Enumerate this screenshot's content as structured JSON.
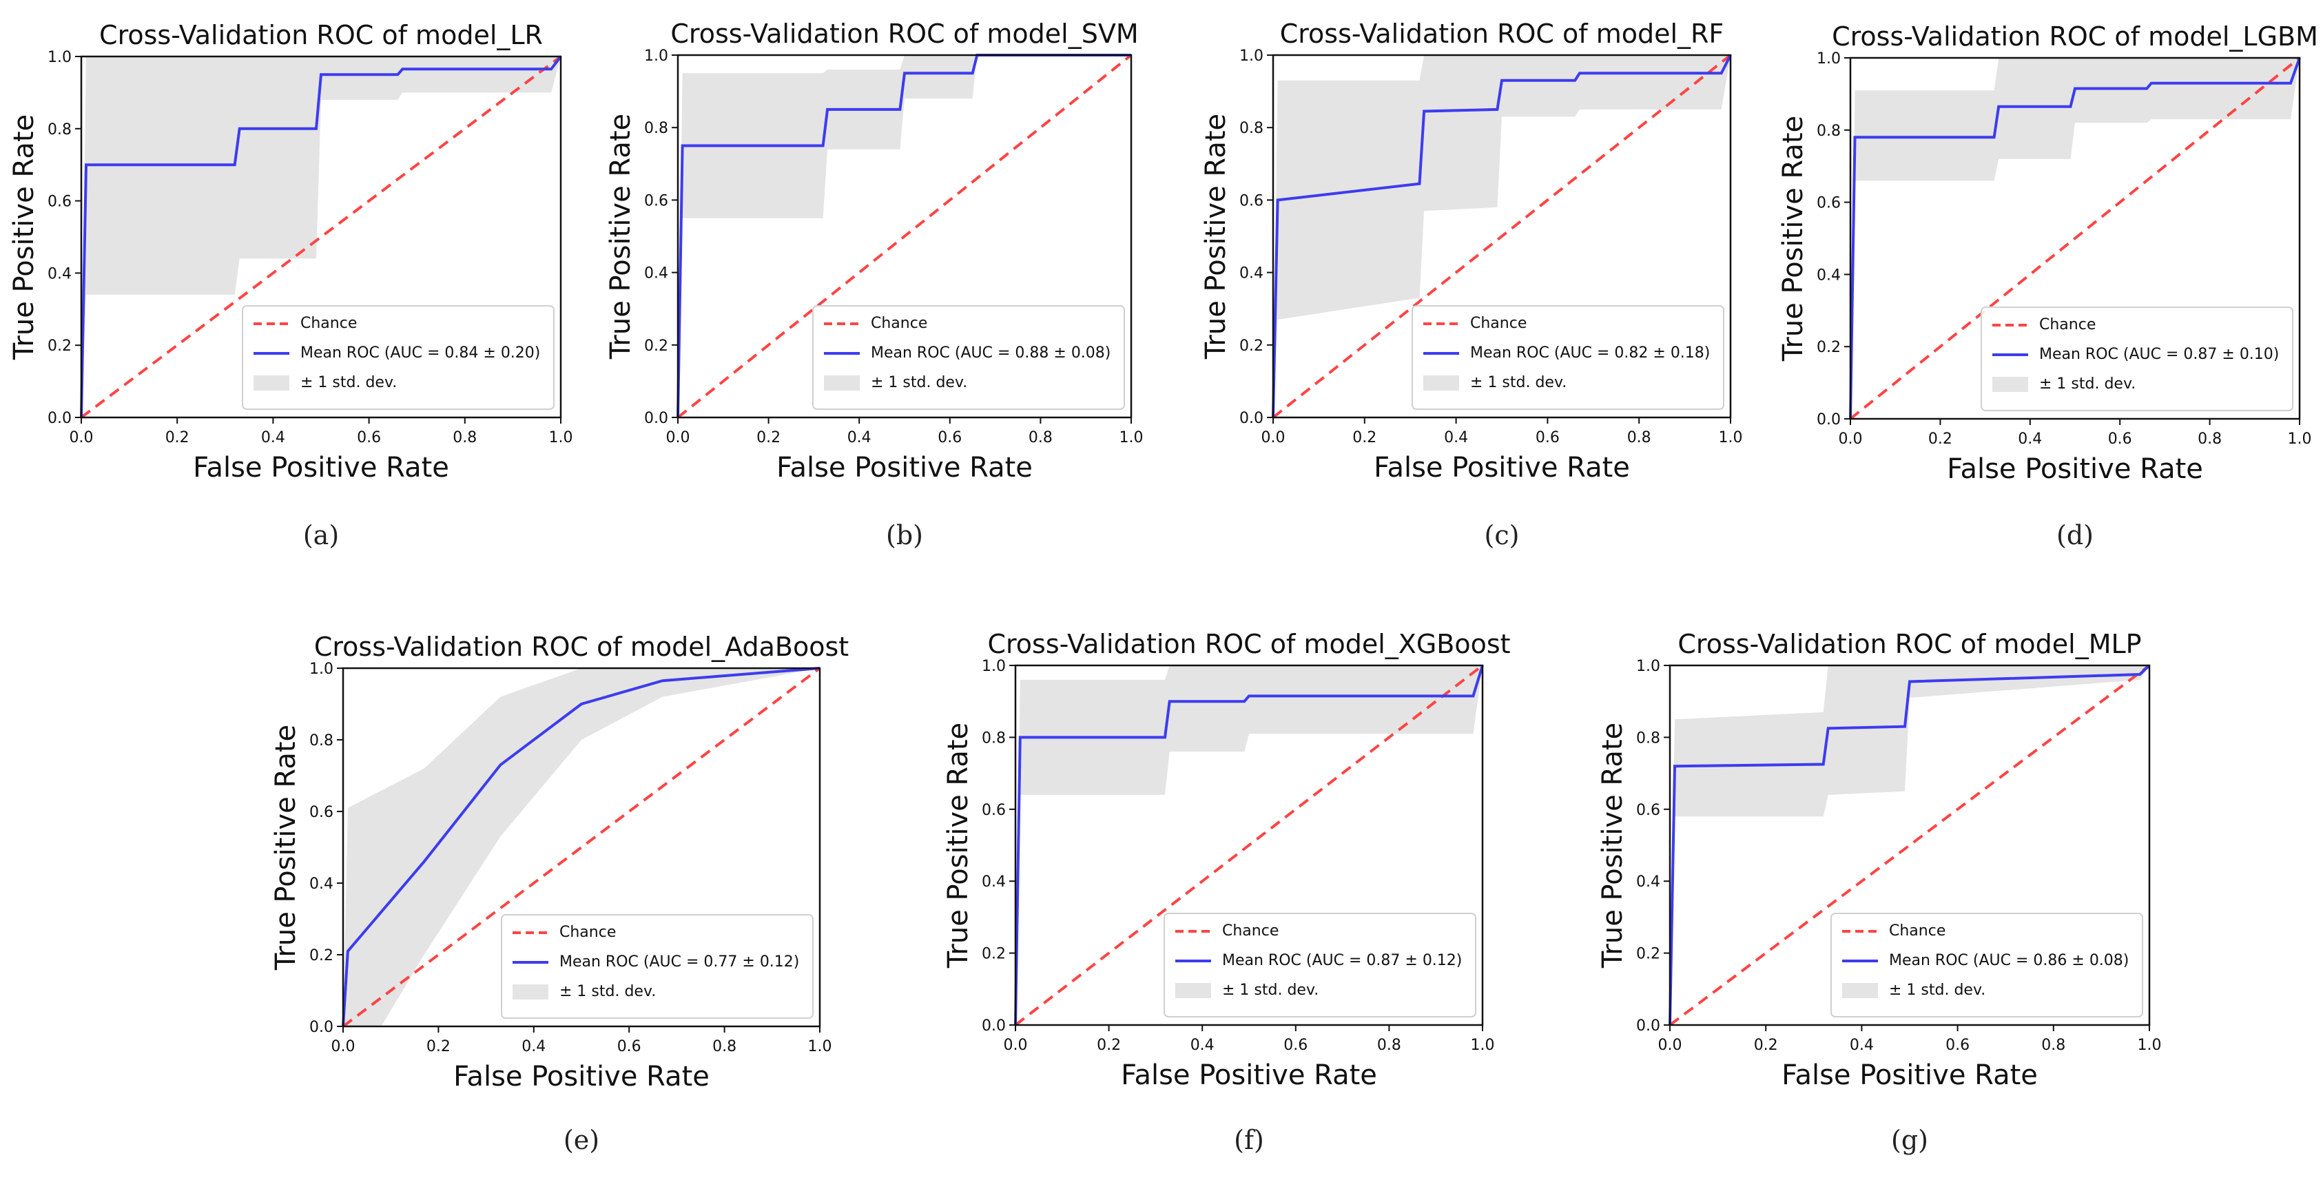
{
  "chart_data": [
    {
      "type": "line",
      "panel": "(a)",
      "title": "Cross-Validation ROC of model_LR",
      "xlabel": "False Positive Rate",
      "ylabel": "True Positive Rate",
      "xlim": [
        0,
        1
      ],
      "ylim": [
        0,
        1
      ],
      "xticks": [
        "0.0",
        "0.2",
        "0.4",
        "0.6",
        "0.8",
        "1.0"
      ],
      "yticks": [
        "0.0",
        "0.2",
        "0.4",
        "0.6",
        "0.8",
        "1.0"
      ],
      "legend": [
        "Chance",
        "Mean ROC (AUC = 0.84 ± 0.20)",
        "± 1 std. dev."
      ],
      "legend_position": "lower-right",
      "grid": false,
      "colors": {
        "chance": "#ff4444",
        "mean": "#3c3cf0",
        "band": "#e4e4e4"
      },
      "chance": {
        "x": [
          0,
          1
        ],
        "y": [
          0,
          1
        ]
      },
      "mean_roc": {
        "x": [
          0,
          0.01,
          0.32,
          0.33,
          0.49,
          0.5,
          0.66,
          0.67,
          0.98,
          1.0
        ],
        "y": [
          0,
          0.7,
          0.7,
          0.8,
          0.8,
          0.95,
          0.95,
          0.965,
          0.965,
          1.0
        ]
      },
      "band_upper": {
        "x": [
          0,
          0.01,
          0.49,
          0.5,
          1.0
        ],
        "y": [
          0,
          1.0,
          1.0,
          1.0,
          1.0
        ]
      },
      "band_lower": {
        "x": [
          0,
          0.01,
          0.32,
          0.33,
          0.49,
          0.5,
          0.66,
          0.67,
          0.98,
          1.0
        ],
        "y": [
          0,
          0.34,
          0.34,
          0.44,
          0.44,
          0.88,
          0.88,
          0.9,
          0.9,
          1.0
        ]
      }
    },
    {
      "type": "line",
      "panel": "(b)",
      "title": "Cross-Validation ROC of model_SVM",
      "xlabel": "False Positive Rate",
      "ylabel": "True Positive Rate",
      "xlim": [
        0,
        1
      ],
      "ylim": [
        0,
        1
      ],
      "xticks": [
        "0.0",
        "0.2",
        "0.4",
        "0.6",
        "0.8",
        "1.0"
      ],
      "yticks": [
        "0.0",
        "0.2",
        "0.4",
        "0.6",
        "0.8",
        "1.0"
      ],
      "legend": [
        "Chance",
        "Mean ROC (AUC = 0.88 ± 0.08)",
        "± 1 std. dev."
      ],
      "legend_position": "lower-right",
      "grid": false,
      "colors": {
        "chance": "#ff4444",
        "mean": "#3c3cf0",
        "band": "#e4e4e4"
      },
      "chance": {
        "x": [
          0,
          1
        ],
        "y": [
          0,
          1
        ]
      },
      "mean_roc": {
        "x": [
          0,
          0.01,
          0.32,
          0.33,
          0.49,
          0.5,
          0.65,
          0.66,
          1.0
        ],
        "y": [
          0,
          0.75,
          0.75,
          0.85,
          0.85,
          0.95,
          0.95,
          1.0,
          1.0
        ]
      },
      "band_upper": {
        "x": [
          0,
          0.01,
          0.32,
          0.33,
          0.49,
          0.5,
          1.0
        ],
        "y": [
          0,
          0.95,
          0.95,
          0.96,
          0.96,
          1.0,
          1.0
        ]
      },
      "band_lower": {
        "x": [
          0,
          0.01,
          0.32,
          0.33,
          0.49,
          0.5,
          0.65,
          0.66,
          1.0
        ],
        "y": [
          0,
          0.55,
          0.55,
          0.74,
          0.74,
          0.88,
          0.88,
          1.0,
          1.0
        ]
      }
    },
    {
      "type": "line",
      "panel": "(c)",
      "title": "Cross-Validation ROC of model_RF",
      "xlabel": "False Positive Rate",
      "ylabel": "True Positive Rate",
      "xlim": [
        0,
        1
      ],
      "ylim": [
        0,
        1
      ],
      "xticks": [
        "0.0",
        "0.2",
        "0.4",
        "0.6",
        "0.8",
        "1.0"
      ],
      "yticks": [
        "0.0",
        "0.2",
        "0.4",
        "0.6",
        "0.8",
        "1.0"
      ],
      "legend": [
        "Chance",
        "Mean ROC (AUC = 0.82 ± 0.18)",
        "± 1 std. dev."
      ],
      "legend_position": "lower-right",
      "grid": false,
      "colors": {
        "chance": "#ff4444",
        "mean": "#3c3cf0",
        "band": "#e4e4e4"
      },
      "chance": {
        "x": [
          0,
          1
        ],
        "y": [
          0,
          1
        ]
      },
      "mean_roc": {
        "x": [
          0,
          0.01,
          0.32,
          0.33,
          0.49,
          0.5,
          0.66,
          0.67,
          0.98,
          1.0
        ],
        "y": [
          0,
          0.6,
          0.645,
          0.845,
          0.85,
          0.93,
          0.93,
          0.95,
          0.95,
          1.0
        ]
      },
      "band_upper": {
        "x": [
          0,
          0.01,
          0.32,
          0.33,
          1.0
        ],
        "y": [
          0,
          0.93,
          0.93,
          1.0,
          1.0
        ]
      },
      "band_lower": {
        "x": [
          0,
          0.01,
          0.32,
          0.33,
          0.49,
          0.5,
          0.66,
          0.67,
          0.98,
          1.0
        ],
        "y": [
          0,
          0.27,
          0.33,
          0.57,
          0.58,
          0.83,
          0.83,
          0.85,
          0.85,
          1.0
        ]
      }
    },
    {
      "type": "line",
      "panel": "(d)",
      "title": "Cross-Validation ROC of model_LGBM",
      "xlabel": "False Positive Rate",
      "ylabel": "True Positive Rate",
      "xlim": [
        0,
        1
      ],
      "ylim": [
        0,
        1
      ],
      "xticks": [
        "0.0",
        "0.2",
        "0.4",
        "0.6",
        "0.8",
        "1.0"
      ],
      "yticks": [
        "0.0",
        "0.2",
        "0.4",
        "0.6",
        "0.8",
        "1.0"
      ],
      "legend": [
        "Chance",
        "Mean ROC (AUC = 0.87 ± 0.10)",
        "± 1 std. dev."
      ],
      "legend_position": "lower-right",
      "grid": false,
      "colors": {
        "chance": "#ff4444",
        "mean": "#3c3cf0",
        "band": "#e4e4e4"
      },
      "chance": {
        "x": [
          0,
          1
        ],
        "y": [
          0,
          1
        ]
      },
      "mean_roc": {
        "x": [
          0,
          0.01,
          0.32,
          0.33,
          0.49,
          0.5,
          0.66,
          0.67,
          0.98,
          1.0
        ],
        "y": [
          0,
          0.78,
          0.78,
          0.865,
          0.865,
          0.915,
          0.915,
          0.93,
          0.93,
          1.0
        ]
      },
      "band_upper": {
        "x": [
          0,
          0.01,
          0.32,
          0.33,
          1.0
        ],
        "y": [
          0,
          0.91,
          0.91,
          1.0,
          1.0
        ]
      },
      "band_lower": {
        "x": [
          0,
          0.01,
          0.32,
          0.33,
          0.49,
          0.5,
          0.66,
          0.67,
          0.98,
          1.0
        ],
        "y": [
          0,
          0.66,
          0.66,
          0.72,
          0.72,
          0.82,
          0.82,
          0.83,
          0.83,
          1.0
        ]
      }
    },
    {
      "type": "line",
      "panel": "(e)",
      "title": "Cross-Validation ROC of model_AdaBoost",
      "xlabel": "False Positive Rate",
      "ylabel": "True Positive Rate",
      "xlim": [
        0,
        1
      ],
      "ylim": [
        0,
        1
      ],
      "xticks": [
        "0.0",
        "0.2",
        "0.4",
        "0.6",
        "0.8",
        "1.0"
      ],
      "yticks": [
        "0.0",
        "0.2",
        "0.4",
        "0.6",
        "0.8",
        "1.0"
      ],
      "legend": [
        "Chance",
        "Mean ROC (AUC = 0.77 ± 0.12)",
        "± 1 std. dev."
      ],
      "legend_position": "lower-right",
      "grid": false,
      "colors": {
        "chance": "#ff4444",
        "mean": "#3c3cf0",
        "band": "#e4e4e4"
      },
      "chance": {
        "x": [
          0,
          1
        ],
        "y": [
          0,
          1
        ]
      },
      "mean_roc": {
        "x": [
          0,
          0.01,
          0.17,
          0.33,
          0.5,
          0.67,
          1.0
        ],
        "y": [
          0,
          0.21,
          0.46,
          0.73,
          0.9,
          0.965,
          1.0
        ]
      },
      "band_upper": {
        "x": [
          0,
          0.01,
          0.17,
          0.33,
          0.5,
          0.67,
          1.0
        ],
        "y": [
          0,
          0.61,
          0.72,
          0.92,
          1.0,
          1.0,
          1.0
        ]
      },
      "band_lower": {
        "x": [
          0,
          0.01,
          0.08,
          0.17,
          0.33,
          0.5,
          0.67,
          1.0
        ],
        "y": [
          0,
          0,
          0,
          0.2,
          0.53,
          0.8,
          0.92,
          1.0
        ]
      }
    },
    {
      "type": "line",
      "panel": "(f)",
      "title": "Cross-Validation ROC of model_XGBoost",
      "xlabel": "False Positive Rate",
      "ylabel": "True Positive Rate",
      "xlim": [
        0,
        1
      ],
      "ylim": [
        0,
        1
      ],
      "xticks": [
        "0.0",
        "0.2",
        "0.4",
        "0.6",
        "0.8",
        "1.0"
      ],
      "yticks": [
        "0.0",
        "0.2",
        "0.4",
        "0.6",
        "0.8",
        "1.0"
      ],
      "legend": [
        "Chance",
        "Mean ROC (AUC = 0.87 ± 0.12)",
        "± 1 std. dev."
      ],
      "legend_position": "lower-right",
      "grid": false,
      "colors": {
        "chance": "#ff4444",
        "mean": "#3c3cf0",
        "band": "#e4e4e4"
      },
      "chance": {
        "x": [
          0,
          1
        ],
        "y": [
          0,
          1
        ]
      },
      "mean_roc": {
        "x": [
          0,
          0.01,
          0.32,
          0.33,
          0.49,
          0.5,
          0.98,
          1.0
        ],
        "y": [
          0,
          0.8,
          0.8,
          0.9,
          0.9,
          0.915,
          0.915,
          1.0
        ]
      },
      "band_upper": {
        "x": [
          0,
          0.01,
          0.32,
          0.33,
          1.0
        ],
        "y": [
          0,
          0.96,
          0.96,
          1.0,
          1.0
        ]
      },
      "band_lower": {
        "x": [
          0,
          0.01,
          0.32,
          0.33,
          0.49,
          0.5,
          0.98,
          1.0
        ],
        "y": [
          0,
          0.64,
          0.64,
          0.76,
          0.76,
          0.81,
          0.81,
          1.0
        ]
      }
    },
    {
      "type": "line",
      "panel": "(g)",
      "title": "Cross-Validation ROC of model_MLP",
      "xlabel": "False Positive Rate",
      "ylabel": "True Positive Rate",
      "xlim": [
        0,
        1
      ],
      "ylim": [
        0,
        1
      ],
      "xticks": [
        "0.0",
        "0.2",
        "0.4",
        "0.6",
        "0.8",
        "1.0"
      ],
      "yticks": [
        "0.0",
        "0.2",
        "0.4",
        "0.6",
        "0.8",
        "1.0"
      ],
      "legend": [
        "Chance",
        "Mean ROC (AUC = 0.86 ± 0.08)",
        "± 1 std. dev."
      ],
      "legend_position": "lower-right",
      "grid": false,
      "colors": {
        "chance": "#ff4444",
        "mean": "#3c3cf0",
        "band": "#e4e4e4"
      },
      "chance": {
        "x": [
          0,
          1
        ],
        "y": [
          0,
          1
        ]
      },
      "mean_roc": {
        "x": [
          0,
          0.01,
          0.32,
          0.33,
          0.49,
          0.5,
          0.98,
          1.0
        ],
        "y": [
          0,
          0.72,
          0.725,
          0.825,
          0.83,
          0.955,
          0.975,
          1.0
        ]
      },
      "band_upper": {
        "x": [
          0,
          0.01,
          0.32,
          0.33,
          1.0
        ],
        "y": [
          0,
          0.85,
          0.87,
          1.0,
          1.0
        ]
      },
      "band_lower": {
        "x": [
          0,
          0.01,
          0.32,
          0.33,
          0.49,
          0.5,
          0.98,
          1.0
        ],
        "y": [
          0,
          0.58,
          0.58,
          0.64,
          0.65,
          0.91,
          0.96,
          1.0
        ]
      }
    }
  ]
}
